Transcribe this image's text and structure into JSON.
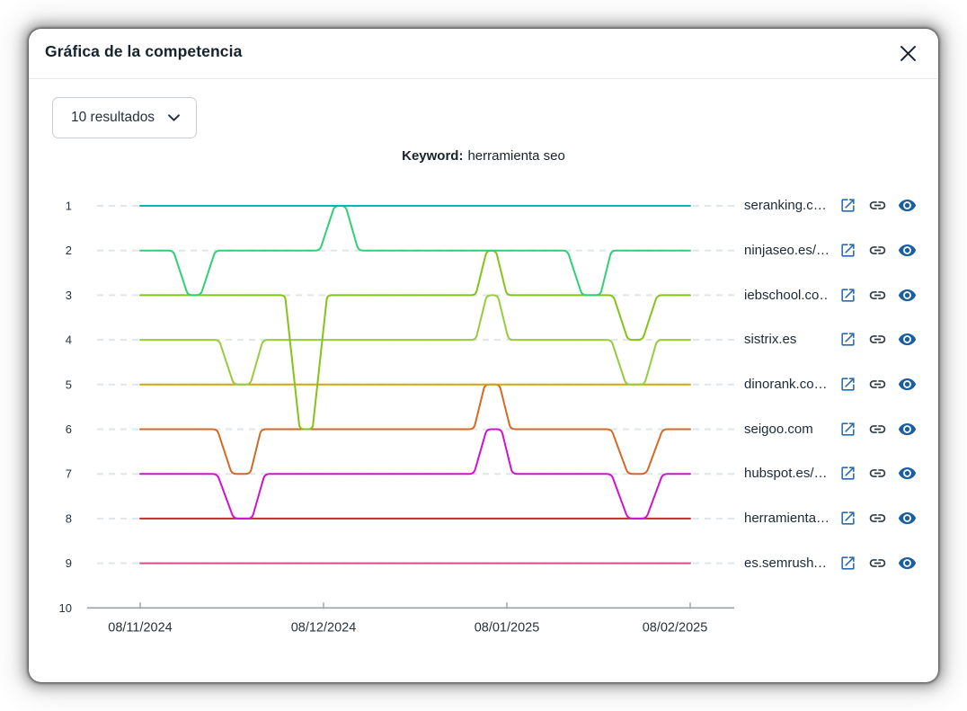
{
  "modal": {
    "title": "Gráfica de la competencia"
  },
  "controls": {
    "results_dropdown": {
      "value": "10 resultados"
    }
  },
  "keyword": {
    "label": "Keyword:",
    "value": "herramienta seo"
  },
  "chart_data": {
    "type": "line",
    "title": "Keyword: herramienta seo",
    "x_tick_labels": [
      "08/11/2024",
      "08/12/2024",
      "08/01/2025",
      "08/02/2025"
    ],
    "x_unit": "months_since_first_tick",
    "y_ticks": [
      1,
      2,
      3,
      4,
      5,
      6,
      7,
      8,
      9,
      10
    ],
    "y_axis": {
      "min": 1,
      "max": 10,
      "inverted": true,
      "meaning": "ranking position"
    },
    "grid": {
      "dashed_rows": [
        1,
        2,
        3,
        4,
        5,
        6,
        7,
        8,
        9
      ],
      "color": "#dfe5e9"
    },
    "axis_color": "#97a3ac",
    "tick_label_color": "#27323c",
    "series": [
      {
        "name": "seranking.c…",
        "color": "#00b6c0",
        "points": [
          [
            0,
            1
          ],
          [
            3,
            1
          ]
        ]
      },
      {
        "name": "ninjaseo.es/…",
        "color": "#2fd076",
        "points": [
          [
            0,
            2
          ],
          [
            0.18,
            2
          ],
          [
            0.26,
            3
          ],
          [
            0.33,
            3
          ],
          [
            0.41,
            2
          ],
          [
            0.98,
            2
          ],
          [
            1.06,
            1
          ],
          [
            1.12,
            1
          ],
          [
            1.19,
            2
          ],
          [
            2.33,
            2
          ],
          [
            2.41,
            3
          ],
          [
            2.51,
            3
          ],
          [
            2.57,
            2
          ],
          [
            3,
            2
          ]
        ]
      },
      {
        "name": "iebschool.co…",
        "color": "#84c318",
        "points": [
          [
            0,
            3
          ],
          [
            0.79,
            3
          ],
          [
            0.87,
            6
          ],
          [
            0.94,
            6
          ],
          [
            1.02,
            3
          ],
          [
            1.83,
            3
          ],
          [
            1.89,
            2
          ],
          [
            1.94,
            2
          ],
          [
            2.0,
            3
          ],
          [
            2.58,
            3
          ],
          [
            2.66,
            4
          ],
          [
            2.74,
            4
          ],
          [
            2.82,
            3
          ],
          [
            3,
            3
          ]
        ]
      },
      {
        "name": "sistrix.es",
        "color": "#95cc40",
        "points": [
          [
            0,
            4
          ],
          [
            0.43,
            4
          ],
          [
            0.51,
            5
          ],
          [
            0.6,
            5
          ],
          [
            0.67,
            4
          ],
          [
            1.83,
            4
          ],
          [
            1.89,
            3
          ],
          [
            1.95,
            3
          ],
          [
            2.01,
            4
          ],
          [
            2.57,
            4
          ],
          [
            2.65,
            5
          ],
          [
            2.75,
            5
          ],
          [
            2.82,
            4
          ],
          [
            3,
            4
          ]
        ]
      },
      {
        "name": "dinorank.co…",
        "color": "#d2a80a",
        "points": [
          [
            0,
            5
          ],
          [
            3,
            5
          ]
        ]
      },
      {
        "name": "seigoo.com",
        "color": "#d26a27",
        "points": [
          [
            0,
            6
          ],
          [
            0.42,
            6
          ],
          [
            0.5,
            7
          ],
          [
            0.6,
            7
          ],
          [
            0.66,
            6
          ],
          [
            1.82,
            6
          ],
          [
            1.88,
            5
          ],
          [
            1.96,
            5
          ],
          [
            2.02,
            6
          ],
          [
            2.57,
            6
          ],
          [
            2.66,
            7
          ],
          [
            2.76,
            7
          ],
          [
            2.85,
            6
          ],
          [
            3,
            6
          ]
        ]
      },
      {
        "name": "hubspot.es/…",
        "color": "#d012ce",
        "points": [
          [
            0,
            7
          ],
          [
            0.42,
            7
          ],
          [
            0.51,
            8
          ],
          [
            0.61,
            8
          ],
          [
            0.68,
            7
          ],
          [
            1.82,
            7
          ],
          [
            1.89,
            6
          ],
          [
            1.97,
            6
          ],
          [
            2.03,
            7
          ],
          [
            2.57,
            7
          ],
          [
            2.66,
            8
          ],
          [
            2.76,
            8
          ],
          [
            2.85,
            7
          ],
          [
            3,
            7
          ]
        ]
      },
      {
        "name": "herramienta…",
        "color": "#c62a28",
        "points": [
          [
            0,
            8
          ],
          [
            3,
            8
          ]
        ]
      },
      {
        "name": "es.semrush.…",
        "color": "#d5508f",
        "points": [
          [
            0,
            9
          ],
          [
            3,
            9
          ]
        ]
      }
    ]
  },
  "legend": {
    "rows": [
      {
        "label": "seranking.c…"
      },
      {
        "label": "ninjaseo.es/…"
      },
      {
        "label": "iebschool.co…"
      },
      {
        "label": "sistrix.es"
      },
      {
        "label": "dinorank.co…"
      },
      {
        "label": "seigoo.com"
      },
      {
        "label": "hubspot.es/…"
      },
      {
        "label": "herramienta…"
      },
      {
        "label": "es.semrush.…"
      }
    ],
    "icon_colors": {
      "open_in_new": "#2b6cb0",
      "link": "#2f3a42",
      "eye": "#1d5f9e"
    },
    "icon_names": [
      "open-in-new-icon",
      "link-icon",
      "eye-icon"
    ]
  }
}
